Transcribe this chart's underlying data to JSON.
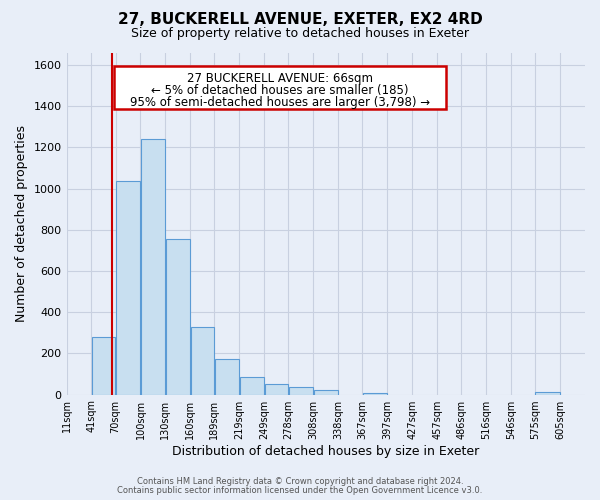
{
  "title": "27, BUCKERELL AVENUE, EXETER, EX2 4RD",
  "subtitle": "Size of property relative to detached houses in Exeter",
  "xlabel": "Distribution of detached houses by size in Exeter",
  "ylabel": "Number of detached properties",
  "bar_left_edges": [
    11,
    41,
    70,
    100,
    130,
    160,
    189,
    219,
    249,
    278,
    308,
    338,
    367,
    397,
    427,
    457,
    486,
    516,
    546,
    575
  ],
  "bar_heights": [
    0,
    280,
    1035,
    1240,
    755,
    330,
    175,
    85,
    50,
    38,
    20,
    0,
    10,
    0,
    0,
    0,
    0,
    0,
    0,
    12
  ],
  "bar_widths": [
    30,
    29,
    30,
    30,
    30,
    29,
    30,
    30,
    29,
    30,
    30,
    29,
    30,
    30,
    30,
    29,
    30,
    30,
    29,
    30
  ],
  "tick_labels": [
    "11sqm",
    "41sqm",
    "70sqm",
    "100sqm",
    "130sqm",
    "160sqm",
    "189sqm",
    "219sqm",
    "249sqm",
    "278sqm",
    "308sqm",
    "338sqm",
    "367sqm",
    "397sqm",
    "427sqm",
    "457sqm",
    "486sqm",
    "516sqm",
    "546sqm",
    "575sqm",
    "605sqm"
  ],
  "tick_positions": [
    11,
    41,
    70,
    100,
    130,
    160,
    189,
    219,
    249,
    278,
    308,
    338,
    367,
    397,
    427,
    457,
    486,
    516,
    546,
    575,
    605
  ],
  "bar_color": "#c8dff0",
  "bar_edge_color": "#5b9bd5",
  "vline_x": 66,
  "vline_color": "#cc0000",
  "ylim": [
    0,
    1660
  ],
  "xlim": [
    11,
    635
  ],
  "yticks": [
    0,
    200,
    400,
    600,
    800,
    1000,
    1200,
    1400,
    1600
  ],
  "annotation_line1": "27 BUCKERELL AVENUE: 66sqm",
  "annotation_line2": "← 5% of detached houses are smaller (185)",
  "annotation_line3": "95% of semi-detached houses are larger (3,798) →",
  "footer_line1": "Contains HM Land Registry data © Crown copyright and database right 2024.",
  "footer_line2": "Contains public sector information licensed under the Open Government Licence v3.0.",
  "bg_color": "#e8eef8",
  "plot_bg_color": "#e8eef8",
  "grid_color": "#c8d0e0",
  "ann_box_facecolor": "#ffffff",
  "ann_box_edgecolor": "#cc0000"
}
